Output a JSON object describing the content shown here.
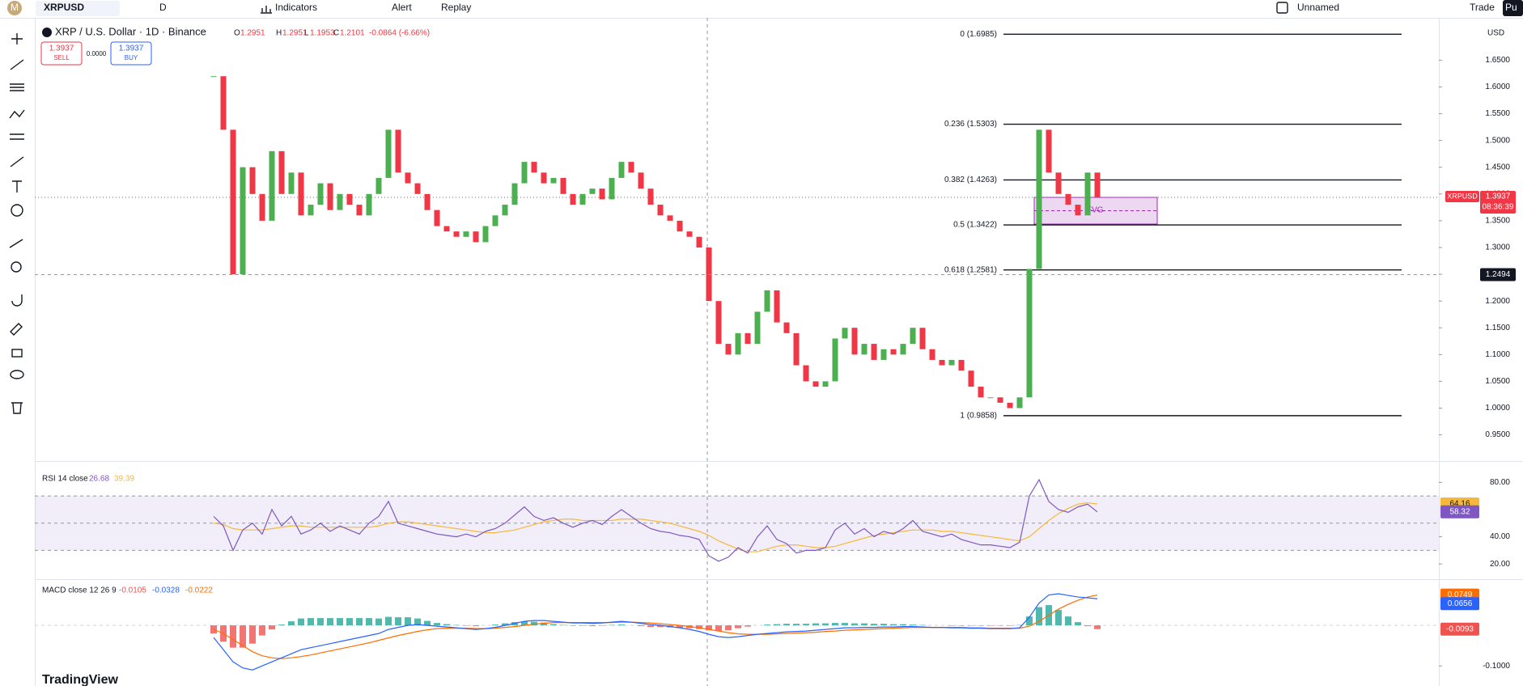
{
  "toolbar": {
    "avatar": "M",
    "symbol": "XRPUSD",
    "interval": "D",
    "indicators": "Indicators",
    "alert": "Alert",
    "replay": "Replay",
    "layout": "Unnamed",
    "trade": "Trade",
    "user": "Pu"
  },
  "legend": {
    "title": "XRP / U.S. Dollar · 1D · Binance",
    "o_label": "O",
    "open": "1.2951",
    "h_label": "H",
    "high": "1.2951",
    "l_label": "L",
    "low": "1.1953",
    "c_label": "C",
    "close": "1.2101",
    "change": "-0.0864 (-6.66%)",
    "sell_price": "1.3937",
    "sell": "SELL",
    "spread": "0.0000",
    "buy_price": "1.3937",
    "buy": "BUY"
  },
  "price_pane": {
    "currency": "USD",
    "ylim": [
      0.901,
      1.7231
    ],
    "yticks": [
      {
        "value": 0.95,
        "label": "0.9500"
      },
      {
        "value": 1.0,
        "label": "1.0000"
      },
      {
        "value": 1.05,
        "label": "1.0500"
      },
      {
        "value": 1.1,
        "label": "1.1000"
      },
      {
        "value": 1.15,
        "label": "1.1500"
      },
      {
        "value": 1.2,
        "label": "1.2000"
      },
      {
        "value": 1.25,
        "label": "1.2500"
      },
      {
        "value": 1.3,
        "label": "1.3000"
      },
      {
        "value": 1.35,
        "label": "1.3500"
      },
      {
        "value": 1.4,
        "label": "1.4000"
      },
      {
        "value": 1.45,
        "label": "1.4500"
      },
      {
        "value": 1.5,
        "label": "1.5000"
      },
      {
        "value": 1.55,
        "label": "1.5500"
      },
      {
        "value": 1.6,
        "label": "1.6000"
      },
      {
        "value": 1.65,
        "label": "1.6500"
      }
    ],
    "up_color": "#4caf50",
    "down_color": "#f23645",
    "closes": [
      1.62,
      1.52,
      1.25,
      1.45,
      1.4,
      1.35,
      1.48,
      1.4,
      1.44,
      1.36,
      1.38,
      1.42,
      1.37,
      1.4,
      1.38,
      1.36,
      1.4,
      1.43,
      1.52,
      1.44,
      1.42,
      1.4,
      1.37,
      1.34,
      1.33,
      1.32,
      1.33,
      1.31,
      1.34,
      1.36,
      1.38,
      1.42,
      1.46,
      1.44,
      1.42,
      1.43,
      1.4,
      1.38,
      1.4,
      1.41,
      1.39,
      1.43,
      1.46,
      1.44,
      1.41,
      1.38,
      1.36,
      1.35,
      1.33,
      1.32,
      1.3,
      1.2,
      1.12,
      1.1,
      1.14,
      1.12,
      1.18,
      1.22,
      1.16,
      1.14,
      1.08,
      1.05,
      1.04,
      1.05,
      1.13,
      1.15,
      1.1,
      1.12,
      1.09,
      1.11,
      1.1,
      1.12,
      1.15,
      1.11,
      1.09,
      1.08,
      1.09,
      1.07,
      1.04,
      1.02,
      1.02,
      1.01,
      1.0,
      1.02,
      1.26,
      1.52,
      1.44,
      1.4,
      1.38,
      1.36,
      1.44,
      1.3937
    ],
    "last": {
      "value": 1.3937,
      "label": "1.3937"
    },
    "symbol_tag": "XRPUSD",
    "countdown": "08:36:39",
    "crosshair": {
      "value": 1.2494,
      "label": "1.2494"
    },
    "fib": [
      {
        "value": 1.6985,
        "label": "0 (1.6985)"
      },
      {
        "value": 1.5303,
        "label": "0.236 (1.5303)"
      },
      {
        "value": 1.4263,
        "label": "0.382 (1.4263)"
      },
      {
        "value": 1.3422,
        "label": "0.5 (1.3422)"
      },
      {
        "value": 1.2581,
        "label": "0.618 (1.2581)"
      },
      {
        "value": 0.9858,
        "label": "1 (0.9858)"
      }
    ],
    "fvg": "FVG"
  },
  "rsi_pane": {
    "legend": "RSI 14 close",
    "legend_v1": "26.68",
    "legend_v2": "39.39",
    "ylim": [
      8.8,
      95.7
    ],
    "yticks": [
      {
        "value": 20,
        "label": "20.00"
      },
      {
        "value": 40,
        "label": "40.00"
      },
      {
        "value": 80,
        "label": "80.00"
      }
    ],
    "levels": [
      70,
      50,
      30
    ],
    "color": "#7e57c2",
    "ma_color": "#f5b83a",
    "values": [
      55,
      48,
      30,
      45,
      50,
      42,
      60,
      48,
      55,
      42,
      45,
      50,
      44,
      48,
      45,
      42,
      50,
      55,
      66,
      50,
      48,
      46,
      44,
      42,
      41,
      40,
      42,
      40,
      44,
      46,
      50,
      56,
      62,
      55,
      52,
      54,
      50,
      47,
      50,
      52,
      49,
      55,
      60,
      55,
      50,
      46,
      44,
      43,
      41,
      40,
      38,
      26,
      22,
      25,
      32,
      28,
      40,
      48,
      38,
      35,
      28,
      30,
      30,
      32,
      45,
      50,
      42,
      46,
      40,
      44,
      42,
      46,
      52,
      44,
      42,
      40,
      42,
      38,
      36,
      34,
      34,
      33,
      32,
      36,
      70,
      82,
      66,
      60,
      58,
      62,
      64,
      58.32
    ],
    "ma": [
      50,
      49,
      46,
      45,
      45,
      45,
      46,
      47,
      48,
      48,
      47,
      47,
      47,
      47,
      47,
      47,
      47,
      48,
      50,
      51,
      51,
      50,
      49,
      48,
      47,
      46,
      45,
      44,
      43,
      43,
      44,
      45,
      47,
      49,
      51,
      52,
      53,
      53,
      52,
      52,
      52,
      52,
      53,
      53,
      53,
      52,
      51,
      50,
      48,
      46,
      44,
      41,
      37,
      34,
      31,
      29,
      29,
      31,
      33,
      34,
      34,
      33,
      32,
      32,
      33,
      35,
      37,
      39,
      41,
      42,
      43,
      44,
      45,
      45,
      45,
      44,
      44,
      43,
      42,
      41,
      40,
      39,
      38,
      37,
      40,
      46,
      52,
      57,
      61,
      64,
      65,
      64.16
    ],
    "ma_tag": {
      "value": 64.16,
      "label": "64.16"
    },
    "rsi_tag": {
      "value": 58.32,
      "label": "58.32"
    }
  },
  "macd_pane": {
    "legend": "MACD close 12 26 9",
    "legend_v1": "-0.0105",
    "legend_v2": "-0.0328",
    "legend_v3": "-0.0222",
    "ylim": [
      -0.1495,
      0.114
    ],
    "yticks": [
      {
        "value": -0.1,
        "label": "-0.1000"
      }
    ],
    "macd_color": "#2962ff",
    "signal_color": "#ff6d00",
    "hist_up": "#26a69a",
    "hist_down": "#ef5350",
    "macd": [
      -0.03,
      -0.06,
      -0.09,
      -0.105,
      -0.11,
      -0.1,
      -0.09,
      -0.08,
      -0.07,
      -0.06,
      -0.055,
      -0.05,
      -0.045,
      -0.04,
      -0.035,
      -0.03,
      -0.025,
      -0.02,
      -0.01,
      -0.005,
      0.0,
      0.002,
      0.0,
      -0.002,
      -0.004,
      -0.006,
      -0.008,
      -0.01,
      -0.008,
      -0.005,
      0.0,
      0.005,
      0.01,
      0.012,
      0.012,
      0.01,
      0.008,
      0.006,
      0.006,
      0.005,
      0.006,
      0.008,
      0.01,
      0.008,
      0.005,
      0.002,
      0.0,
      -0.003,
      -0.006,
      -0.01,
      -0.015,
      -0.022,
      -0.028,
      -0.03,
      -0.028,
      -0.025,
      -0.022,
      -0.02,
      -0.018,
      -0.016,
      -0.015,
      -0.014,
      -0.012,
      -0.01,
      -0.008,
      -0.006,
      -0.006,
      -0.005,
      -0.005,
      -0.004,
      -0.004,
      -0.003,
      -0.003,
      -0.004,
      -0.005,
      -0.005,
      -0.006,
      -0.006,
      -0.007,
      -0.007,
      -0.008,
      -0.008,
      -0.008,
      -0.006,
      0.02,
      0.055,
      0.075,
      0.078,
      0.074,
      0.07,
      0.068,
      0.0656
    ],
    "signal": [
      -0.01,
      -0.02,
      -0.035,
      -0.05,
      -0.065,
      -0.075,
      -0.08,
      -0.082,
      -0.08,
      -0.077,
      -0.073,
      -0.068,
      -0.063,
      -0.058,
      -0.053,
      -0.048,
      -0.043,
      -0.037,
      -0.031,
      -0.025,
      -0.02,
      -0.015,
      -0.011,
      -0.008,
      -0.007,
      -0.007,
      -0.007,
      -0.008,
      -0.008,
      -0.007,
      -0.005,
      -0.003,
      0.0,
      0.003,
      0.005,
      0.007,
      0.007,
      0.007,
      0.007,
      0.007,
      0.007,
      0.007,
      0.008,
      0.008,
      0.007,
      0.006,
      0.004,
      0.002,
      0.0,
      -0.003,
      -0.006,
      -0.01,
      -0.014,
      -0.018,
      -0.021,
      -0.022,
      -0.022,
      -0.022,
      -0.021,
      -0.02,
      -0.019,
      -0.018,
      -0.017,
      -0.015,
      -0.014,
      -0.012,
      -0.011,
      -0.01,
      -0.009,
      -0.008,
      -0.007,
      -0.006,
      -0.005,
      -0.005,
      -0.005,
      -0.005,
      -0.005,
      -0.005,
      -0.006,
      -0.006,
      -0.007,
      -0.007,
      -0.007,
      -0.007,
      -0.002,
      0.01,
      0.025,
      0.04,
      0.052,
      0.062,
      0.07,
      0.0749
    ],
    "histogram": [
      -0.02,
      -0.04,
      -0.055,
      -0.055,
      -0.045,
      -0.025,
      -0.01,
      0.002,
      0.01,
      0.017,
      0.018,
      0.018,
      0.018,
      0.018,
      0.018,
      0.018,
      0.018,
      0.017,
      0.021,
      0.02,
      0.02,
      0.017,
      0.011,
      0.006,
      0.003,
      0.001,
      -0.001,
      -0.002,
      0.0,
      0.002,
      0.005,
      0.008,
      0.01,
      0.009,
      0.007,
      0.003,
      0.001,
      -0.001,
      -0.001,
      -0.002,
      -0.001,
      0.001,
      0.002,
      0.0,
      -0.002,
      -0.004,
      -0.004,
      -0.005,
      -0.006,
      -0.007,
      -0.009,
      -0.012,
      -0.014,
      -0.012,
      -0.007,
      -0.003,
      0.0,
      0.002,
      0.003,
      0.004,
      0.004,
      0.004,
      0.005,
      0.005,
      0.006,
      0.006,
      0.005,
      0.005,
      0.004,
      0.004,
      0.003,
      0.003,
      0.002,
      0.001,
      0.0,
      0.0,
      -0.001,
      -0.001,
      -0.001,
      -0.001,
      -0.001,
      -0.001,
      -0.001,
      0.001,
      0.022,
      0.045,
      0.05,
      0.038,
      0.022,
      0.008,
      -0.002,
      -0.0093
    ],
    "signal_tag": {
      "value": 0.0749,
      "label": "0.0749"
    },
    "macd_tag": {
      "value": 0.0656,
      "label": "0.0656"
    },
    "hist_tag": {
      "value": -0.0093,
      "label": "-0.0093"
    }
  },
  "footer": {
    "brand": "TradingView"
  }
}
